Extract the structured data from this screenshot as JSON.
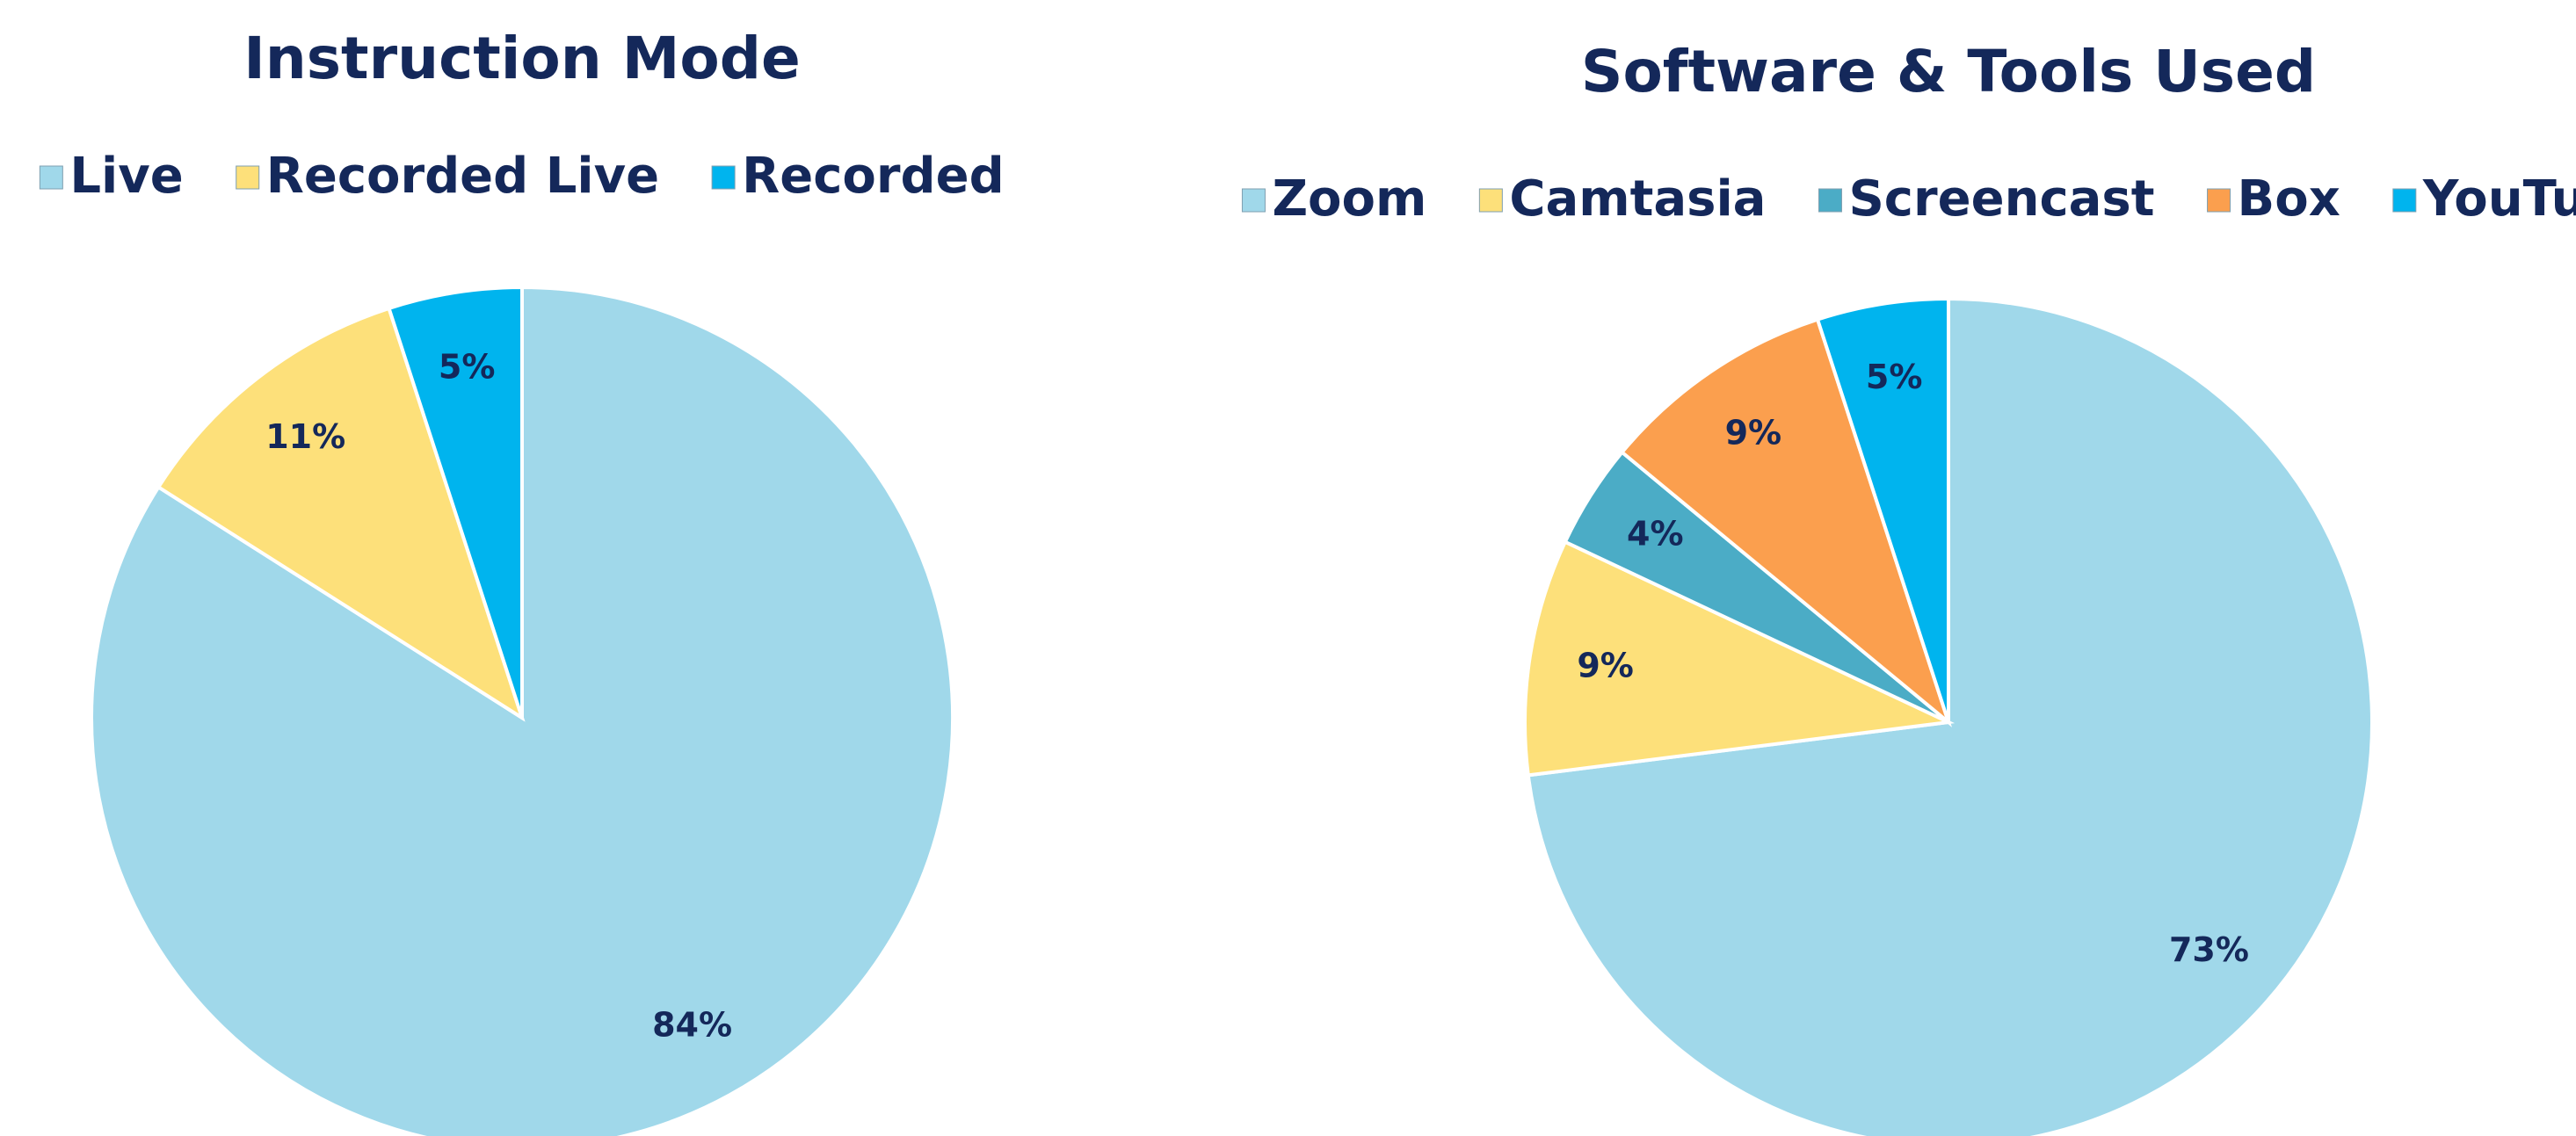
{
  "chart_data": [
    {
      "type": "pie",
      "title": "Instruction Mode",
      "categories": [
        "Live",
        "Recorded Live",
        "Recorded"
      ],
      "values": [
        84,
        11,
        5
      ],
      "value_labels": [
        "84%",
        "11%",
        "5%"
      ],
      "colors": [
        "#a0d8ea",
        "#fde07a",
        "#00b4ee"
      ]
    },
    {
      "type": "pie",
      "title": "Software & Tools Used",
      "categories": [
        "Zoom",
        "Camtasia",
        "Screencast",
        "Box",
        "YouTube"
      ],
      "values": [
        73,
        9,
        4,
        9,
        5
      ],
      "value_labels": [
        "73%",
        "9%",
        "4%",
        "9%",
        "5%"
      ],
      "colors": [
        "#a0d8ea",
        "#fde07a",
        "#4bacc6",
        "#fb9f4e",
        "#00b4ee"
      ]
    }
  ]
}
